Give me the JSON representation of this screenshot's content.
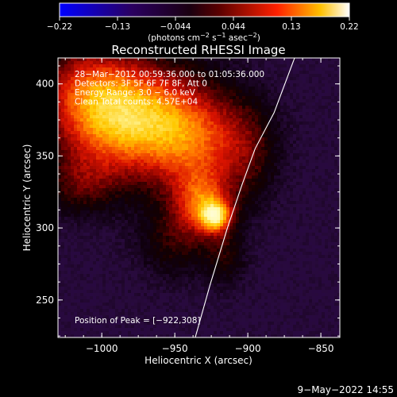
{
  "colorbar": {
    "ticks": [
      "−0.22",
      "−0.13",
      "−0.044",
      "0.044",
      "0.13",
      "0.22"
    ],
    "units_label_main": "(photons cm",
    "units_sup_1": "−2",
    "units_mid_1": " s",
    "units_sup_2": "−1",
    "units_mid_2": " asec",
    "units_sup_3": "−2",
    "units_close": ")"
  },
  "footer": {
    "date": "9−May−2022 14:55"
  },
  "chart_data": {
    "type": "heatmap",
    "title": "Reconstructed RHESSI Image",
    "xlabel": "Heliocentric X (arcsec)",
    "ylabel": "Heliocentric Y (arcsec)",
    "xlim": [
      -1030,
      -837
    ],
    "ylim": [
      224,
      418
    ],
    "x_ticks": [
      -1000,
      -950,
      -900,
      -850
    ],
    "x_tick_labels": [
      "−1000",
      "−950",
      "−900",
      "−850"
    ],
    "y_ticks": [
      250,
      300,
      350,
      400
    ],
    "y_tick_labels": [
      "250",
      "300",
      "350",
      "400"
    ],
    "value_range": [
      -0.22,
      0.22
    ],
    "colormap": "black-blue-purple-red-yellow-white",
    "info_lines": [
      "28−Mar−2012 00:59:36.000 to 01:05:36.000",
      "Detectors: 3F 5F 6F 7F 8F, Att 0",
      "Energy Range: 3.0 − 6.0 keV",
      "Clean     Total counts: 4.57E+04"
    ],
    "peak_label": "Position of Peak = [−922,308]",
    "peak": [
      -922,
      308
    ],
    "limb_curve": [
      [
        -936,
        224
      ],
      [
        -926,
        260
      ],
      [
        -914,
        300
      ],
      [
        -904,
        330
      ],
      [
        -895,
        355
      ],
      [
        -882,
        380
      ],
      [
        -868,
        418
      ]
    ],
    "blobs": [
      {
        "x": -922,
        "y": 308,
        "sx": 7,
        "sy": 7,
        "amp": 0.13
      },
      {
        "x": -930,
        "y": 316,
        "sx": 12,
        "sy": 14,
        "amp": 0.07
      },
      {
        "x": -935,
        "y": 325,
        "sx": 18,
        "sy": 20,
        "amp": 0.05
      },
      {
        "x": -985,
        "y": 370,
        "sx": 30,
        "sy": 28,
        "amp": 0.085
      },
      {
        "x": -960,
        "y": 380,
        "sx": 35,
        "sy": 25,
        "amp": 0.075
      },
      {
        "x": -1010,
        "y": 395,
        "sx": 25,
        "sy": 25,
        "amp": 0.08
      },
      {
        "x": -935,
        "y": 360,
        "sx": 25,
        "sy": 20,
        "amp": 0.06
      },
      {
        "x": -900,
        "y": 350,
        "sx": 15,
        "sy": 25,
        "amp": 0.04
      },
      {
        "x": -1015,
        "y": 330,
        "sx": 18,
        "sy": 15,
        "amp": 0.045
      },
      {
        "x": -950,
        "y": 290,
        "sx": 18,
        "sy": 18,
        "amp": 0.04
      },
      {
        "x": -915,
        "y": 280,
        "sx": 10,
        "sy": 15,
        "amp": 0.035
      }
    ],
    "background": -0.04
  }
}
